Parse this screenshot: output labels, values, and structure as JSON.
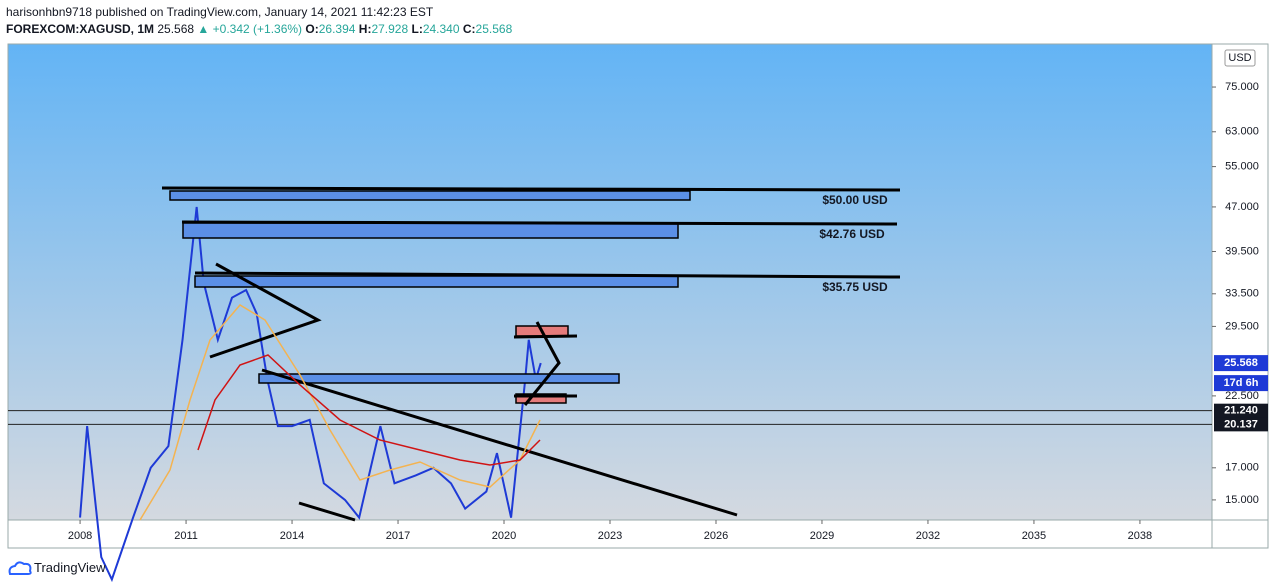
{
  "header": {
    "publisher": "harisonhbn9718 published on TradingView.com, January 14, 2021 11:42:23 EST",
    "symbol": "FOREXCOM:XAGUSD, 1M",
    "last": "25.568",
    "arrow": "▲",
    "change": "+0.342 (+1.36%)",
    "ohlc": [
      {
        "label": "O:",
        "value": "26.394"
      },
      {
        "label": "H:",
        "value": "27.928"
      },
      {
        "label": "L:",
        "value": "24.340"
      },
      {
        "label": "C:",
        "value": "25.568"
      }
    ]
  },
  "chart_data": {
    "type": "line",
    "yscale": "log",
    "currency": "USD",
    "x": [
      2008.0,
      2008.2,
      2008.6,
      2008.9,
      2009.5,
      2010.0,
      2010.5,
      2010.9,
      2011.3,
      2011.5,
      2011.9,
      2012.3,
      2012.7,
      2013.0,
      2013.3,
      2013.6,
      2014.0,
      2014.5,
      2014.9,
      2015.5,
      2015.9,
      2016.5,
      2016.9,
      2017.5,
      2018.0,
      2018.5,
      2018.9,
      2019.5,
      2019.8,
      2020.2,
      2020.6,
      2020.7,
      2020.9,
      2021.04
    ],
    "values": [
      14,
      20,
      12,
      11,
      14,
      17,
      18.5,
      28,
      47,
      35,
      28,
      33,
      34,
      31,
      24,
      20,
      20,
      20.5,
      16,
      15,
      14,
      20,
      16,
      16.5,
      17,
      16,
      14.5,
      15.5,
      18,
      14,
      24,
      28,
      24,
      25.568
    ],
    "color": "#1e3ad6",
    "xlim": [
      2005.96,
      2040.04
    ],
    "xticks": [
      2008,
      2011,
      2014,
      2017,
      2020,
      2023,
      2026,
      2029,
      2032,
      2035,
      2038
    ],
    "ylim": [
      13.87,
      88.7
    ],
    "yticks": [
      {
        "value": 75,
        "label": "75.000"
      },
      {
        "value": 63,
        "label": "63.000"
      },
      {
        "value": 55,
        "label": "55.000"
      },
      {
        "value": 47,
        "label": "47.000"
      },
      {
        "value": 39.5,
        "label": "39.500"
      },
      {
        "value": 33.5,
        "label": "33.500"
      },
      {
        "value": 29.5,
        "label": "29.500"
      },
      {
        "value": 22.5,
        "label": "22.500"
      },
      {
        "value": 17,
        "label": "17.000"
      },
      {
        "value": 15,
        "label": "15.000"
      }
    ],
    "levels": [
      {
        "value": 21.24,
        "label": "21.240"
      },
      {
        "value": 20.137,
        "label": "20.137"
      }
    ],
    "last_price": {
      "value": 25.568,
      "label": "25.568"
    },
    "countdown": "17d 6h",
    "annotations": [
      "$50.00 USD",
      "$42.76 USD",
      "$35.75 USD"
    ]
  },
  "footer": {
    "brand": "TradingView"
  }
}
